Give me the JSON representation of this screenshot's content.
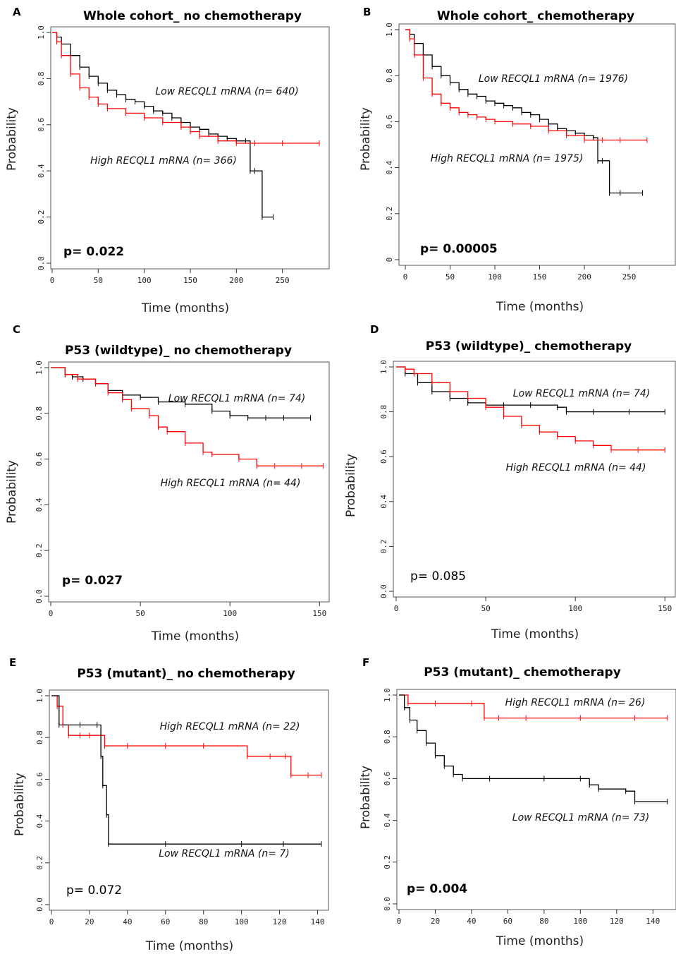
{
  "chart_data": [
    {
      "type": "line",
      "panel": "A",
      "title": "Whole cohort_ no chemotherapy",
      "xlabel": "Time (months)",
      "ylabel": "Probability",
      "xlim": [
        0,
        300
      ],
      "ylim": [
        0,
        1
      ],
      "xticks": [
        "0",
        "50",
        "100",
        "150",
        "200",
        "250"
      ],
      "yticks": [
        "0.0",
        "0.2",
        "0.4",
        "0.6",
        "0.8",
        "1.0"
      ],
      "p_value": "p= 0.022",
      "p_bold": true,
      "annotations": [
        "Low RECQL1 mRNA (n= 640)",
        "High RECQL1 mRNA (n= 366)"
      ],
      "series": [
        {
          "color": "#000000",
          "x": [
            0,
            5,
            10,
            20,
            30,
            40,
            50,
            60,
            70,
            80,
            90,
            100,
            110,
            120,
            130,
            140,
            150,
            160,
            170,
            180,
            190,
            200,
            210,
            215,
            220,
            228,
            240
          ],
          "y": [
            1.0,
            0.98,
            0.95,
            0.9,
            0.85,
            0.81,
            0.78,
            0.75,
            0.73,
            0.71,
            0.7,
            0.68,
            0.66,
            0.65,
            0.63,
            0.61,
            0.59,
            0.58,
            0.56,
            0.55,
            0.54,
            0.53,
            0.53,
            0.4,
            0.4,
            0.2,
            0.2
          ]
        },
        {
          "color": "#ff0000",
          "x": [
            0,
            5,
            10,
            20,
            30,
            40,
            50,
            60,
            80,
            100,
            120,
            140,
            150,
            160,
            180,
            200,
            220,
            250,
            290
          ],
          "y": [
            1.0,
            0.96,
            0.9,
            0.82,
            0.76,
            0.72,
            0.69,
            0.67,
            0.65,
            0.63,
            0.61,
            0.59,
            0.57,
            0.55,
            0.53,
            0.52,
            0.52,
            0.52,
            0.52
          ]
        }
      ]
    },
    {
      "type": "line",
      "panel": "B",
      "title": "Whole cohort_ chemotherapy",
      "xlabel": "Time (months)",
      "ylabel": "Probability",
      "xlim": [
        0,
        300
      ],
      "ylim": [
        0,
        1
      ],
      "xticks": [
        "0",
        "50",
        "100",
        "150",
        "200",
        "250"
      ],
      "yticks": [
        "0",
        "0.2",
        "0.4",
        "0.6",
        "0.8",
        "1.0"
      ],
      "p_value": "p= 0.00005",
      "p_bold": true,
      "annotations": [
        "Low RECQL1 mRNA (n= 1976)",
        "High RECQL1 mRNA (n= 1975)"
      ],
      "series": [
        {
          "color": "#000000",
          "x": [
            0,
            5,
            10,
            20,
            30,
            40,
            50,
            60,
            70,
            80,
            90,
            100,
            110,
            120,
            130,
            140,
            150,
            160,
            170,
            180,
            190,
            200,
            210,
            215,
            220,
            228,
            240,
            265
          ],
          "y": [
            1.0,
            0.98,
            0.94,
            0.89,
            0.84,
            0.8,
            0.77,
            0.74,
            0.72,
            0.71,
            0.69,
            0.68,
            0.67,
            0.66,
            0.64,
            0.63,
            0.61,
            0.59,
            0.57,
            0.56,
            0.55,
            0.54,
            0.53,
            0.43,
            0.43,
            0.29,
            0.29,
            0.29
          ]
        },
        {
          "color": "#ff0000",
          "x": [
            0,
            5,
            10,
            20,
            30,
            40,
            50,
            60,
            70,
            80,
            90,
            100,
            120,
            140,
            160,
            180,
            200,
            220,
            240,
            270
          ],
          "y": [
            1.0,
            0.96,
            0.89,
            0.79,
            0.72,
            0.68,
            0.66,
            0.64,
            0.63,
            0.62,
            0.61,
            0.6,
            0.59,
            0.58,
            0.56,
            0.54,
            0.52,
            0.52,
            0.52,
            0.52
          ]
        }
      ]
    },
    {
      "type": "line",
      "panel": "C",
      "title": "P53 (wildtype)_ no chemotherapy",
      "xlabel": "Time (months)",
      "ylabel": "Probability",
      "xlim": [
        0,
        155
      ],
      "ylim": [
        0,
        1
      ],
      "xticks": [
        "0",
        "50",
        "100",
        "150"
      ],
      "yticks": [
        "0.0",
        "0.2",
        "0.4",
        "0.6",
        "0.8",
        "1.0"
      ],
      "p_value": "p= 0.027",
      "p_bold": true,
      "annotations": [
        "Low RECQL1 mRNA (n= 74)",
        "High RECQL1 mRNA (n= 44)"
      ],
      "series": [
        {
          "color": "#000000",
          "x": [
            0,
            8,
            12,
            18,
            25,
            32,
            40,
            50,
            60,
            75,
            90,
            100,
            110,
            120,
            130,
            145
          ],
          "y": [
            1.0,
            0.97,
            0.96,
            0.95,
            0.93,
            0.9,
            0.88,
            0.87,
            0.85,
            0.84,
            0.81,
            0.79,
            0.78,
            0.78,
            0.78,
            0.78
          ]
        },
        {
          "color": "#ff0000",
          "x": [
            0,
            8,
            15,
            25,
            32,
            40,
            45,
            55,
            60,
            65,
            75,
            85,
            90,
            105,
            115,
            125,
            140,
            152
          ],
          "y": [
            1.0,
            0.97,
            0.95,
            0.93,
            0.89,
            0.86,
            0.82,
            0.79,
            0.74,
            0.72,
            0.67,
            0.63,
            0.62,
            0.6,
            0.57,
            0.57,
            0.57,
            0.57
          ]
        }
      ]
    },
    {
      "type": "line",
      "panel": "D",
      "title": "P53 (wildtype)_ chemotherapy",
      "xlabel": "Time (months)",
      "ylabel": "Probability",
      "xlim": [
        0,
        155
      ],
      "ylim": [
        0,
        1
      ],
      "xticks": [
        "0",
        "50",
        "100",
        "150"
      ],
      "yticks": [
        "0.0",
        "0.2",
        "0.4",
        "0.6",
        "0.8",
        "1.0"
      ],
      "p_value": "p= 0.085",
      "p_bold": false,
      "annotations": [
        "Low RECQL1 mRNA (n= 74)",
        "High RECQL1 mRNA (n= 44)"
      ],
      "series": [
        {
          "color": "#000000",
          "x": [
            0,
            5,
            12,
            20,
            30,
            40,
            50,
            60,
            75,
            90,
            95,
            110,
            130,
            150
          ],
          "y": [
            1.0,
            0.97,
            0.93,
            0.89,
            0.86,
            0.84,
            0.83,
            0.83,
            0.83,
            0.82,
            0.8,
            0.8,
            0.8,
            0.8
          ]
        },
        {
          "color": "#ff0000",
          "x": [
            0,
            5,
            10,
            20,
            30,
            40,
            50,
            60,
            70,
            80,
            90,
            100,
            110,
            120,
            135,
            150
          ],
          "y": [
            1.0,
            0.99,
            0.97,
            0.93,
            0.89,
            0.86,
            0.82,
            0.78,
            0.74,
            0.71,
            0.69,
            0.67,
            0.65,
            0.63,
            0.63,
            0.63
          ]
        }
      ]
    },
    {
      "type": "line",
      "panel": "E",
      "title": "P53 (mutant)_ no chemotherapy",
      "xlabel": "Time (months)",
      "ylabel": "Probability",
      "xlim": [
        0,
        145
      ],
      "ylim": [
        0,
        1
      ],
      "xticks": [
        "0",
        "20",
        "40",
        "60",
        "80",
        "100",
        "120",
        "140"
      ],
      "yticks": [
        "0.0",
        "0.2",
        "0.4",
        "0.6",
        "0.8",
        "1.0"
      ],
      "p_value": "p= 0.072",
      "p_bold": false,
      "annotations": [
        "High RECQL1 mRNA (n= 22)",
        "Low RECQL1 mRNA (n= 7)"
      ],
      "series": [
        {
          "color": "#ff0000",
          "x": [
            0,
            3,
            6,
            9,
            15,
            20,
            28,
            40,
            60,
            80,
            103,
            115,
            123,
            126,
            135,
            142
          ],
          "y": [
            1.0,
            0.95,
            0.86,
            0.81,
            0.81,
            0.81,
            0.76,
            0.76,
            0.76,
            0.76,
            0.71,
            0.71,
            0.71,
            0.62,
            0.62,
            0.62
          ]
        },
        {
          "color": "#000000",
          "x": [
            0,
            4,
            15,
            24,
            26,
            27,
            29,
            30,
            60,
            100,
            122,
            142
          ],
          "y": [
            1.0,
            0.86,
            0.86,
            0.86,
            0.71,
            0.57,
            0.43,
            0.29,
            0.29,
            0.29,
            0.29,
            0.29
          ]
        }
      ]
    },
    {
      "type": "line",
      "panel": "F",
      "title": "P53 (mutant)_ chemotherapy",
      "xlabel": "Time (months)",
      "ylabel": "Probability",
      "xlim": [
        0,
        150
      ],
      "ylim": [
        0,
        1
      ],
      "xticks": [
        "0",
        "20",
        "40",
        "60",
        "80",
        "100",
        "120",
        "140"
      ],
      "yticks": [
        "0.0",
        "0.2",
        "0.4",
        "0.6",
        "0.8",
        "1.0"
      ],
      "p_value": "p= 0.004",
      "p_bold": true,
      "annotations": [
        "High RECQL1 mRNA (n= 26)",
        "Low RECQL1 mRNA (n= 73)"
      ],
      "series": [
        {
          "color": "#ff0000",
          "x": [
            0,
            5,
            20,
            40,
            47,
            55,
            70,
            100,
            130,
            148
          ],
          "y": [
            1.0,
            0.96,
            0.96,
            0.96,
            0.89,
            0.89,
            0.89,
            0.89,
            0.89,
            0.89
          ]
        },
        {
          "color": "#000000",
          "x": [
            0,
            3,
            6,
            10,
            15,
            20,
            25,
            30,
            35,
            50,
            80,
            100,
            105,
            110,
            125,
            130,
            148
          ],
          "y": [
            1.0,
            0.94,
            0.88,
            0.83,
            0.77,
            0.71,
            0.66,
            0.62,
            0.6,
            0.6,
            0.6,
            0.6,
            0.57,
            0.55,
            0.54,
            0.49,
            0.49
          ]
        }
      ]
    }
  ]
}
